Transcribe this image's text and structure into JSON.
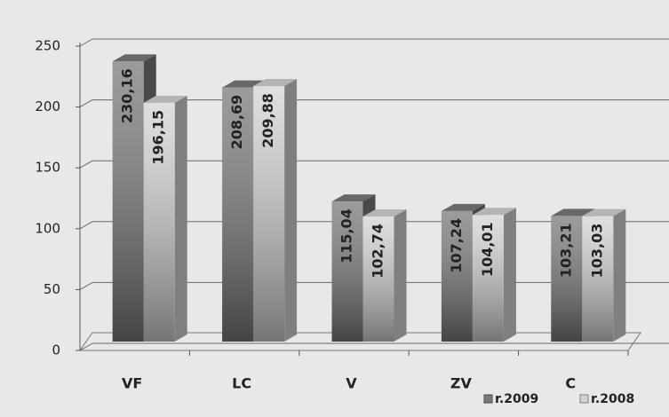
{
  "chart_data": {
    "type": "bar3d",
    "categories": [
      "VF",
      "LC",
      "V",
      "ZV",
      "C"
    ],
    "series": [
      {
        "name": "r.2009",
        "color": "#7a7a7a",
        "values": [
          230.16,
          208.69,
          115.04,
          107.24,
          103.21
        ],
        "value_labels": [
          "230,16",
          "208,69",
          "115,04",
          "107,24",
          "103,21"
        ]
      },
      {
        "name": "r.2008",
        "color": "#d4d4d4",
        "values": [
          196.15,
          209.88,
          102.74,
          104.01,
          103.03
        ],
        "value_labels": [
          "196,15",
          "209,88",
          "102,74",
          "104,01",
          "103,03"
        ]
      }
    ],
    "ylim": [
      0,
      250
    ],
    "yticks": [
      0,
      50,
      100,
      150,
      200,
      250
    ],
    "grid": true,
    "legend": "bottom-right"
  }
}
